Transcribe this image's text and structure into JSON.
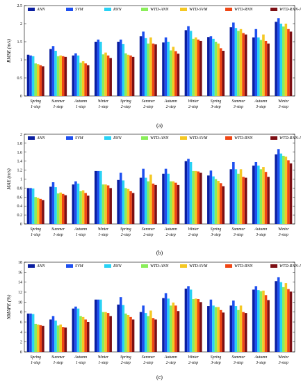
{
  "figure": {
    "panels": [
      "(a)",
      "(b)",
      "(c)"
    ]
  },
  "chart_data": [
    {
      "type": "bar",
      "panel_label": "(a)",
      "ylabel": "RMSE (m/s)",
      "ylim": [
        0,
        2.5
      ],
      "yticks": [
        "0",
        "0.5",
        "1",
        "1.5",
        "2",
        "2.5"
      ],
      "ytick_values": [
        0,
        0.5,
        1,
        1.5,
        2,
        2.5
      ],
      "categories": [
        [
          "Spring",
          "1-step"
        ],
        [
          "Summer",
          "1-step"
        ],
        [
          "Autumn",
          "1-step"
        ],
        [
          "Winter",
          "1-step"
        ],
        [
          "Spring",
          "2-step"
        ],
        [
          "Summer",
          "2-step"
        ],
        [
          "Autumn",
          "2-step"
        ],
        [
          "Winter",
          "2-step"
        ],
        [
          "Spring",
          "3-step"
        ],
        [
          "Summer",
          "3-step"
        ],
        [
          "Autumn",
          "3-step"
        ],
        [
          "Winter",
          "3-step"
        ]
      ],
      "legend_position": "top",
      "series": [
        {
          "name": "ANN",
          "color": "#0a1ea0",
          "values": [
            1.14,
            1.3,
            1.12,
            1.5,
            1.5,
            1.65,
            1.48,
            1.82,
            1.63,
            1.9,
            1.62,
            2.05
          ]
        },
        {
          "name": "SVM",
          "color": "#1e50f0",
          "values": [
            1.12,
            1.38,
            1.18,
            1.56,
            1.56,
            1.78,
            1.62,
            1.93,
            1.65,
            2.03,
            1.85,
            2.15
          ]
        },
        {
          "name": "RNN",
          "color": "#28d2f5",
          "values": [
            1.1,
            1.25,
            1.12,
            1.5,
            1.44,
            1.6,
            1.5,
            1.8,
            1.58,
            1.88,
            1.62,
            2.0
          ]
        },
        {
          "name": "WTD-ANN",
          "color": "#8aee5a",
          "values": [
            0.9,
            1.1,
            0.92,
            1.15,
            1.18,
            1.45,
            1.26,
            1.58,
            1.5,
            1.8,
            1.55,
            1.92
          ]
        },
        {
          "name": "WTD-SVM",
          "color": "#f5c823",
          "values": [
            0.88,
            1.12,
            0.96,
            1.2,
            1.14,
            1.62,
            1.36,
            1.62,
            1.45,
            1.85,
            1.7,
            2.0
          ]
        },
        {
          "name": "WTD-RNN",
          "color": "#f04614",
          "values": [
            0.85,
            1.1,
            0.9,
            1.12,
            1.12,
            1.45,
            1.24,
            1.56,
            1.32,
            1.74,
            1.52,
            1.85
          ]
        },
        {
          "name": "WTD-RNN-ANFIS",
          "color": "#7d0f14",
          "values": [
            0.82,
            1.08,
            0.85,
            1.05,
            1.08,
            1.43,
            1.17,
            1.52,
            1.25,
            1.7,
            1.45,
            1.78
          ]
        }
      ]
    },
    {
      "type": "bar",
      "panel_label": "(b)",
      "ylabel": "MAE (m/s)",
      "ylim": [
        0,
        2
      ],
      "yticks": [
        "0",
        "0.2",
        "0.4",
        "0.6",
        "0.8",
        "1",
        "1.2",
        "1.4",
        "1.6",
        "1.8",
        "2"
      ],
      "ytick_values": [
        0,
        0.2,
        0.4,
        0.6,
        0.8,
        1,
        1.2,
        1.4,
        1.6,
        1.8,
        2
      ],
      "categories": [
        [
          "Spring",
          "1-step"
        ],
        [
          "Summer",
          "1-step"
        ],
        [
          "Autumn",
          "1-step"
        ],
        [
          "Winter",
          "1-step"
        ],
        [
          "Spring",
          "2-step"
        ],
        [
          "Summer",
          "2-step"
        ],
        [
          "Autumn",
          "2-step"
        ],
        [
          "Winter",
          "2-step"
        ],
        [
          "Spring",
          "3-step"
        ],
        [
          "Summer",
          "3-step"
        ],
        [
          "Autumn",
          "3-step"
        ],
        [
          "Winter",
          "3-step"
        ]
      ],
      "legend_position": "top",
      "series": [
        {
          "name": "ANN",
          "color": "#0a1ea0",
          "values": [
            0.8,
            0.83,
            0.88,
            1.18,
            0.98,
            1.03,
            1.12,
            1.4,
            1.08,
            1.22,
            1.3,
            1.55
          ]
        },
        {
          "name": "SVM",
          "color": "#1e50f0",
          "values": [
            0.8,
            0.93,
            0.95,
            1.18,
            1.14,
            1.23,
            1.23,
            1.45,
            1.19,
            1.38,
            1.38,
            1.67
          ]
        },
        {
          "name": "RNN",
          "color": "#28d2f5",
          "values": [
            0.79,
            0.82,
            0.9,
            1.18,
            0.97,
            1.03,
            1.12,
            1.38,
            1.06,
            1.22,
            1.3,
            1.57
          ]
        },
        {
          "name": "WTD-ANN",
          "color": "#8aee5a",
          "values": [
            0.6,
            0.68,
            0.73,
            0.88,
            0.8,
            0.95,
            0.95,
            1.18,
            1.0,
            1.12,
            1.22,
            1.52
          ]
        },
        {
          "name": "WTD-SVM",
          "color": "#f5c823",
          "values": [
            0.58,
            0.7,
            0.75,
            0.88,
            0.78,
            1.1,
            0.95,
            1.18,
            0.96,
            1.22,
            1.27,
            1.5
          ]
        },
        {
          "name": "WTD-RNN",
          "color": "#f04614",
          "values": [
            0.56,
            0.67,
            0.69,
            0.86,
            0.73,
            0.9,
            0.92,
            1.17,
            0.91,
            1.05,
            1.16,
            1.42
          ]
        },
        {
          "name": "WTD-RNN-ANFIS",
          "color": "#7d0f14",
          "values": [
            0.53,
            0.64,
            0.63,
            0.8,
            0.69,
            0.87,
            0.87,
            1.14,
            0.84,
            1.03,
            1.05,
            1.35
          ]
        }
      ]
    },
    {
      "type": "bar",
      "panel_label": "(c)",
      "ylabel": "NMAPE (%)",
      "ylim": [
        0,
        18
      ],
      "yticks": [
        "0",
        "2",
        "4",
        "6",
        "8",
        "10",
        "12",
        "14",
        "16",
        "18"
      ],
      "ytick_values": [
        0,
        2,
        4,
        6,
        8,
        10,
        12,
        14,
        16,
        18
      ],
      "categories": [
        [
          "Spring",
          "1-step"
        ],
        [
          "Summer",
          "1-step"
        ],
        [
          "Autumn",
          "1-step"
        ],
        [
          "Winter",
          "1-step"
        ],
        [
          "Spring",
          "2-step"
        ],
        [
          "Summer",
          "2-step"
        ],
        [
          "Autumn",
          "2-step"
        ],
        [
          "Winter",
          "2-step"
        ],
        [
          "Spring",
          "3-step"
        ],
        [
          "Summer",
          "3-step"
        ],
        [
          "Autumn",
          "3-step"
        ],
        [
          "Winter",
          "3-step"
        ]
      ],
      "legend_position": "top",
      "series": [
        {
          "name": "ANN",
          "color": "#0a1ea0",
          "values": [
            7.7,
            6.5,
            8.7,
            10.5,
            9.5,
            8.0,
            10.8,
            12.7,
            9.2,
            9.3,
            12.5,
            14.2
          ]
        },
        {
          "name": "SVM",
          "color": "#1e50f0",
          "values": [
            7.7,
            7.2,
            9.1,
            10.5,
            11.0,
            9.3,
            11.8,
            13.2,
            10.5,
            10.3,
            13.2,
            15.0
          ]
        },
        {
          "name": "RNN",
          "color": "#28d2f5",
          "values": [
            7.6,
            6.3,
            8.7,
            10.5,
            9.4,
            7.8,
            10.7,
            12.5,
            9.3,
            9.2,
            12.4,
            14.0
          ]
        },
        {
          "name": "WTD-ANN",
          "color": "#8aee5a",
          "values": [
            5.6,
            5.3,
            7.2,
            8.0,
            7.7,
            7.2,
            9.3,
            10.6,
            9.0,
            8.4,
            12.2,
            13.0
          ]
        },
        {
          "name": "WTD-SVM",
          "color": "#f5c823",
          "values": [
            5.5,
            5.5,
            7.0,
            8.0,
            7.4,
            8.3,
            9.9,
            10.7,
            9.0,
            9.3,
            12.3,
            13.8
          ]
        },
        {
          "name": "WTD-RNN",
          "color": "#f04614",
          "values": [
            5.4,
            5.0,
            6.5,
            7.8,
            7.0,
            6.8,
            9.3,
            10.6,
            8.4,
            8.0,
            11.4,
            12.6
          ]
        },
        {
          "name": "WTD-RNN-ANFIS",
          "color": "#7d0f14",
          "values": [
            5.2,
            4.9,
            6.0,
            7.2,
            6.5,
            6.5,
            8.2,
            10.0,
            7.9,
            7.8,
            10.4,
            12.1
          ]
        }
      ]
    }
  ]
}
